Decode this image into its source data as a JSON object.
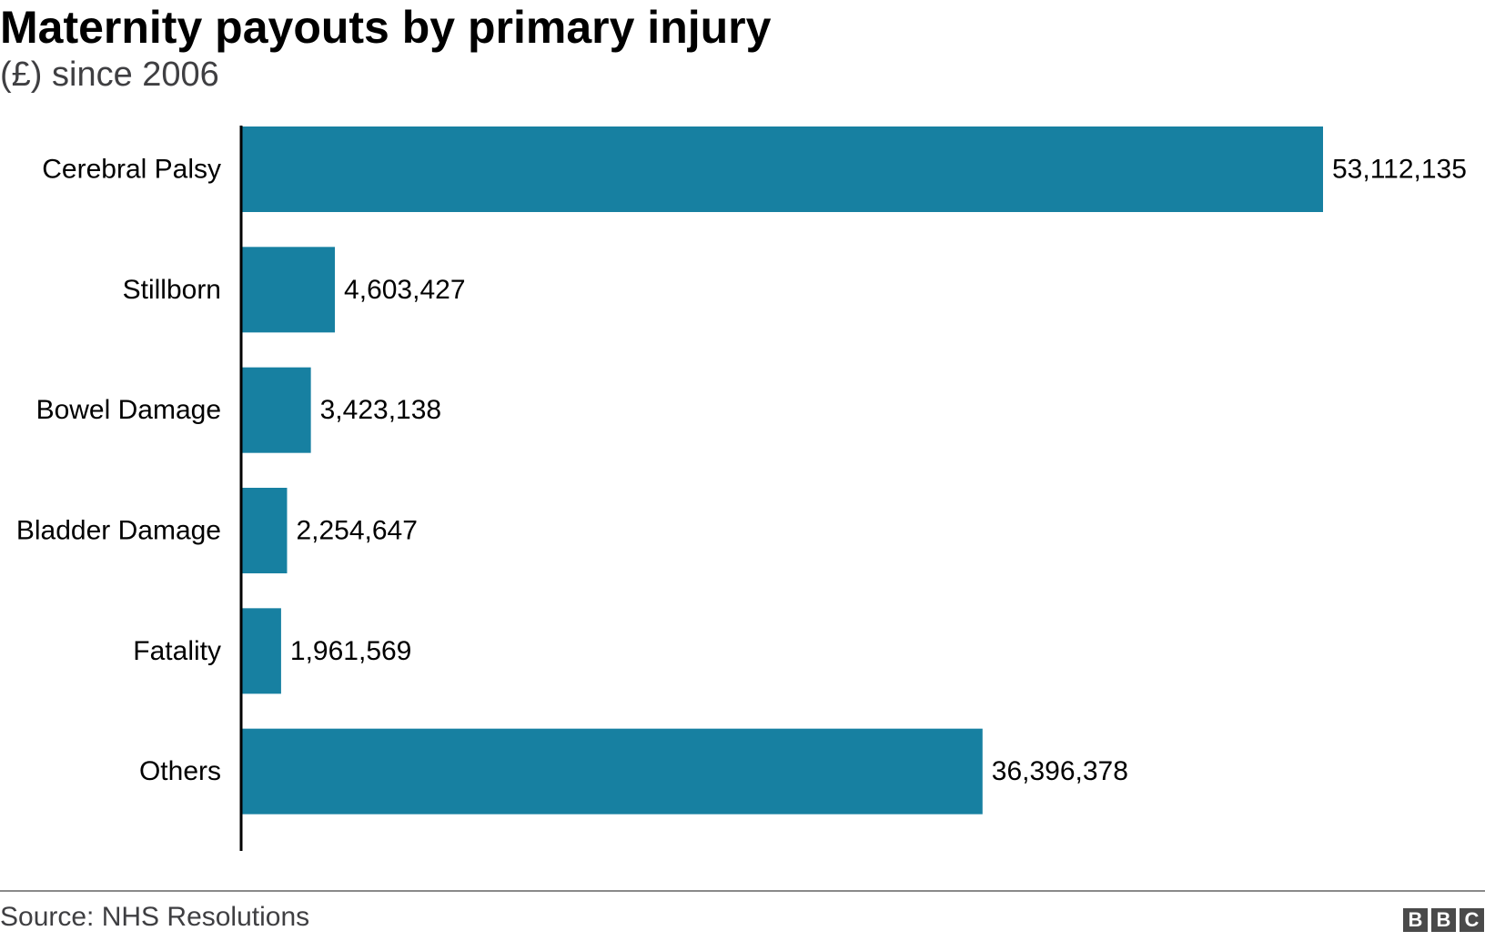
{
  "header": {
    "title": "Maternity payouts by primary injury",
    "subtitle": "(£) since 2006"
  },
  "footer": {
    "source": "Source: NHS Resolutions",
    "logo_letters": [
      "B",
      "B",
      "C"
    ]
  },
  "colors": {
    "bar": "#1780a1",
    "axis": "#000000"
  },
  "chart_data": {
    "type": "bar",
    "orientation": "horizontal",
    "title": "Maternity payouts by primary injury",
    "subtitle": "(£) since 2006",
    "xlabel": "",
    "ylabel": "",
    "grid": false,
    "legend": "none",
    "xlim": [
      0,
      53112135
    ],
    "categories": [
      "Cerebral Palsy",
      "Stillborn",
      "Bowel Damage",
      "Bladder Damage",
      "Fatality",
      "Others"
    ],
    "values": [
      53112135,
      4603427,
      3423138,
      2254647,
      1961569,
      36396378
    ],
    "value_labels": [
      "53,112,135",
      "4,603,427",
      "3,423,138",
      "2,254,647",
      "1,961,569",
      "36,396,378"
    ]
  }
}
